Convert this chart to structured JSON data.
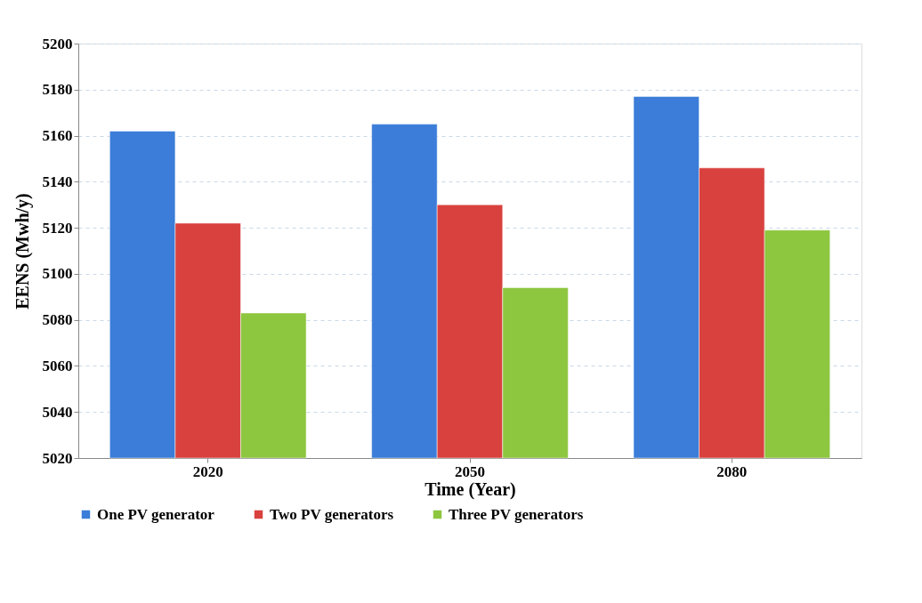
{
  "chart_data": {
    "type": "bar",
    "xlabel": "Time  (Year)",
    "ylabel": "EENS (Mwh/y)",
    "categories": [
      "2020",
      "2050",
      "2080"
    ],
    "series": [
      {
        "name": "One PV generator",
        "color": "#3b7dd8",
        "values": [
          5162,
          5165,
          5177
        ]
      },
      {
        "name": "Two PV generators",
        "color": "#d9413f",
        "values": [
          5122,
          5130,
          5146
        ]
      },
      {
        "name": "Three PV generators",
        "color": "#8dc63f",
        "values": [
          5083,
          5094,
          5119
        ]
      }
    ],
    "ylim": [
      5020,
      5200
    ],
    "yticks": [
      5020,
      5040,
      5060,
      5080,
      5100,
      5120,
      5140,
      5160,
      5180,
      5200
    ],
    "grid": "y",
    "legend": "bottom"
  }
}
